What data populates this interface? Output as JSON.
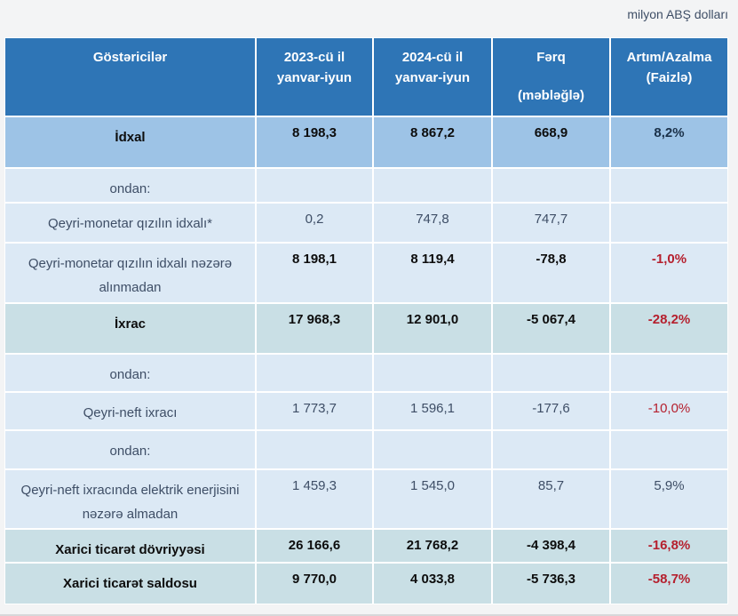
{
  "note": "milyon ABŞ dolları",
  "colors": {
    "page_bg": "#f3f4f5",
    "header_bg": "#2e75b6",
    "row_blue": "#9dc3e6",
    "row_light": "#dce9f5",
    "row_teal": "#c9dfe5",
    "text_header": "#ffffff",
    "text_dark": "#0d0d0d",
    "text_slate": "#3e4e66",
    "text_navy": "#1b3149",
    "text_red": "#b5202e"
  },
  "table": {
    "columns": [
      {
        "label": "Göstəricilər"
      },
      {
        "label": "2023-cü il yanvar-iyun"
      },
      {
        "label": "2024-cü il yanvar-iyun"
      },
      {
        "label": "Fərq",
        "sublabel": "(məbləğlə)"
      },
      {
        "label": "Artım/Azalma (Faizlə)"
      }
    ],
    "rows": [
      {
        "label": "İdxal",
        "values": [
          "8 198,3",
          "8 867,2",
          "668,9",
          "8,2%"
        ],
        "bg": "blue",
        "label_bold": true,
        "values_bold": true,
        "pct_red": false
      },
      {
        "label": "ondan:",
        "values": [
          "",
          "",
          "",
          ""
        ],
        "bg": "light",
        "label_bold": false,
        "values_bold": false,
        "pct_red": false
      },
      {
        "label": "Qeyri-monetar qızılın idxalı*",
        "values": [
          "0,2",
          "747,8",
          "747,7",
          ""
        ],
        "bg": "light",
        "label_bold": false,
        "values_bold": false,
        "pct_red": false
      },
      {
        "label": "Qeyri-monetar qızılın idxalı nəzərə alınmadan",
        "values": [
          "8 198,1",
          "8 119,4",
          "-78,8",
          "-1,0%"
        ],
        "bg": "light",
        "label_bold": false,
        "values_bold": true,
        "pct_red": true
      },
      {
        "label": "İxrac",
        "values": [
          "17 968,3",
          "12 901,0",
          "-5 067,4",
          "-28,2%"
        ],
        "bg": "teal",
        "label_bold": true,
        "values_bold": true,
        "pct_red": true
      },
      {
        "label": "ondan:",
        "values": [
          "",
          "",
          "",
          ""
        ],
        "bg": "light",
        "label_bold": false,
        "values_bold": false,
        "pct_red": false
      },
      {
        "label": "Qeyri-neft ixracı",
        "values": [
          "1 773,7",
          "1 596,1",
          "-177,6",
          "-10,0%"
        ],
        "bg": "light",
        "label_bold": false,
        "values_bold": false,
        "pct_red": true
      },
      {
        "label": "ondan:",
        "values": [
          "",
          "",
          "",
          ""
        ],
        "bg": "light",
        "label_bold": false,
        "values_bold": false,
        "pct_red": false
      },
      {
        "label": "Qeyri-neft ixracında elektrik enerjisini nəzərə almadan",
        "values": [
          "1 459,3",
          "1 545,0",
          "85,7",
          "5,9%"
        ],
        "bg": "light",
        "label_bold": false,
        "values_bold": false,
        "pct_red": false
      },
      {
        "label": "Xarici ticarət dövriyyəsi",
        "values": [
          "26 166,6",
          "21 768,2",
          "-4 398,4",
          "-16,8%"
        ],
        "bg": "teal",
        "label_bold": true,
        "values_bold": true,
        "pct_red": true
      },
      {
        "label": "Xarici ticarət saldosu",
        "values": [
          "9 770,0",
          "4 033,8",
          "-5 736,3",
          "-58,7%"
        ],
        "bg": "teal",
        "label_bold": true,
        "values_bold": true,
        "pct_red": true
      }
    ]
  }
}
